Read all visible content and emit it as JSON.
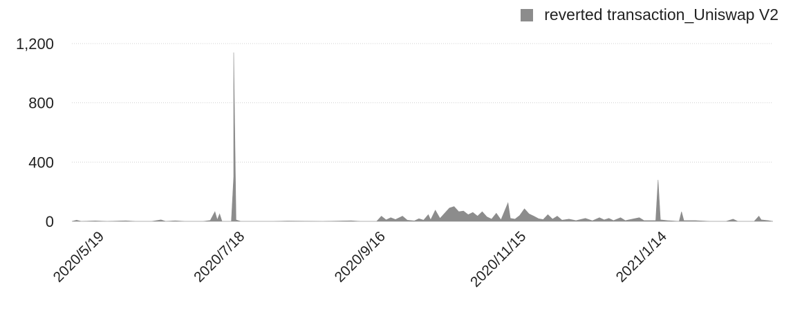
{
  "chart_data": {
    "type": "area",
    "title": "",
    "xlabel": "",
    "ylabel": "",
    "ylim": [
      0,
      1200
    ],
    "yticks": [
      0,
      400,
      800,
      1200
    ],
    "ytick_labels": [
      "0",
      "400",
      "800",
      "1,200"
    ],
    "xlim": [
      "2020-05-05",
      "2021-02-28"
    ],
    "xtick_labels": [
      "2020/5/19",
      "2020/7/18",
      "2020/9/16",
      "2020/11/15",
      "2021/1/14"
    ],
    "xtick_dates": [
      "2020-05-19",
      "2020-07-18",
      "2020-09-16",
      "2020-11-15",
      "2021-01-14"
    ],
    "grid": "horizontal dotted",
    "legend_position": "top-right",
    "series_color": "#8c8c8c",
    "series": [
      {
        "name": "reverted transaction_Uniswap V2",
        "points": [
          [
            "2020-05-05",
            0
          ],
          [
            "2020-05-07",
            8
          ],
          [
            "2020-05-09",
            0
          ],
          [
            "2020-05-15",
            3
          ],
          [
            "2020-05-20",
            0
          ],
          [
            "2020-05-28",
            4
          ],
          [
            "2020-06-01",
            0
          ],
          [
            "2020-06-08",
            0
          ],
          [
            "2020-06-12",
            10
          ],
          [
            "2020-06-14",
            0
          ],
          [
            "2020-06-18",
            4
          ],
          [
            "2020-06-22",
            0
          ],
          [
            "2020-06-30",
            0
          ],
          [
            "2020-07-03",
            6
          ],
          [
            "2020-07-05",
            65
          ],
          [
            "2020-07-06",
            10
          ],
          [
            "2020-07-07",
            50
          ],
          [
            "2020-07-08",
            0
          ],
          [
            "2020-07-12",
            0
          ],
          [
            "2020-07-13",
            300
          ],
          [
            "2020-07-13",
            1140
          ],
          [
            "2020-07-14",
            10
          ],
          [
            "2020-07-16",
            0
          ],
          [
            "2020-07-30",
            0
          ],
          [
            "2020-08-05",
            2
          ],
          [
            "2020-08-20",
            0
          ],
          [
            "2020-09-01",
            4
          ],
          [
            "2020-09-05",
            0
          ],
          [
            "2020-09-12",
            0
          ],
          [
            "2020-09-14",
            35
          ],
          [
            "2020-09-16",
            10
          ],
          [
            "2020-09-18",
            25
          ],
          [
            "2020-09-20",
            12
          ],
          [
            "2020-09-23",
            35
          ],
          [
            "2020-09-25",
            8
          ],
          [
            "2020-09-28",
            3
          ],
          [
            "2020-09-30",
            18
          ],
          [
            "2020-10-02",
            8
          ],
          [
            "2020-10-04",
            45
          ],
          [
            "2020-10-05",
            10
          ],
          [
            "2020-10-07",
            75
          ],
          [
            "2020-10-09",
            20
          ],
          [
            "2020-10-11",
            55
          ],
          [
            "2020-10-13",
            90
          ],
          [
            "2020-10-15",
            100
          ],
          [
            "2020-10-17",
            65
          ],
          [
            "2020-10-19",
            70
          ],
          [
            "2020-10-21",
            45
          ],
          [
            "2020-10-23",
            60
          ],
          [
            "2020-10-25",
            35
          ],
          [
            "2020-10-27",
            65
          ],
          [
            "2020-10-29",
            30
          ],
          [
            "2020-10-31",
            15
          ],
          [
            "2020-11-02",
            55
          ],
          [
            "2020-11-04",
            10
          ],
          [
            "2020-11-07",
            125
          ],
          [
            "2020-11-08",
            20
          ],
          [
            "2020-11-10",
            15
          ],
          [
            "2020-11-12",
            40
          ],
          [
            "2020-11-14",
            85
          ],
          [
            "2020-11-16",
            50
          ],
          [
            "2020-11-18",
            35
          ],
          [
            "2020-11-20",
            18
          ],
          [
            "2020-11-22",
            12
          ],
          [
            "2020-11-24",
            45
          ],
          [
            "2020-11-26",
            15
          ],
          [
            "2020-11-28",
            35
          ],
          [
            "2020-11-30",
            8
          ],
          [
            "2020-12-03",
            15
          ],
          [
            "2020-12-06",
            5
          ],
          [
            "2020-12-10",
            20
          ],
          [
            "2020-12-13",
            4
          ],
          [
            "2020-12-16",
            25
          ],
          [
            "2020-12-18",
            10
          ],
          [
            "2020-12-20",
            20
          ],
          [
            "2020-12-22",
            5
          ],
          [
            "2020-12-25",
            25
          ],
          [
            "2020-12-27",
            5
          ],
          [
            "2020-12-30",
            15
          ],
          [
            "2021-01-02",
            25
          ],
          [
            "2021-01-04",
            5
          ],
          [
            "2021-01-09",
            5
          ],
          [
            "2021-01-10",
            280
          ],
          [
            "2021-01-11",
            10
          ],
          [
            "2021-01-14",
            5
          ],
          [
            "2021-01-19",
            0
          ],
          [
            "2021-01-20",
            65
          ],
          [
            "2021-01-21",
            5
          ],
          [
            "2021-01-26",
            5
          ],
          [
            "2021-02-01",
            0
          ],
          [
            "2021-02-08",
            0
          ],
          [
            "2021-02-11",
            15
          ],
          [
            "2021-02-13",
            0
          ],
          [
            "2021-02-20",
            0
          ],
          [
            "2021-02-22",
            35
          ],
          [
            "2021-02-23",
            10
          ],
          [
            "2021-02-26",
            5
          ],
          [
            "2021-02-28",
            0
          ]
        ]
      }
    ]
  }
}
